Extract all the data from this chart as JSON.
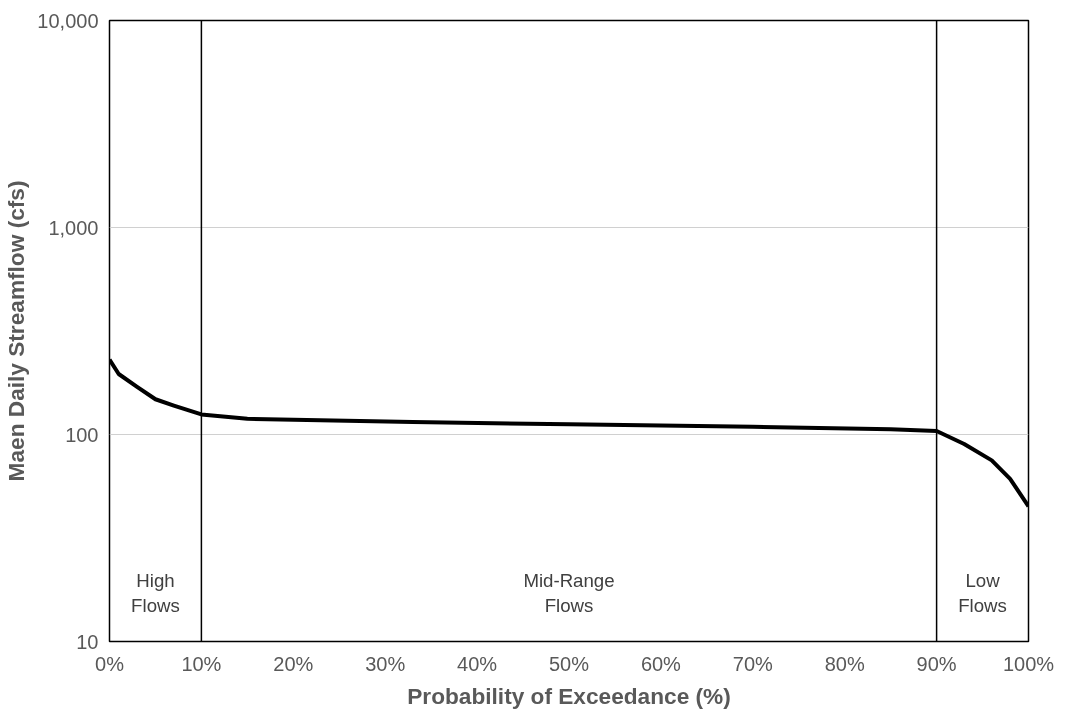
{
  "chart_data": {
    "type": "line",
    "xlabel": "Probability of Exceedance (%)",
    "ylabel": "Maen Daily Streamflow (cfs)",
    "log": "y",
    "grid": "y",
    "line_style": "solid",
    "marker": "none",
    "xlim": [
      0,
      100
    ],
    "ylim": [
      10,
      10000
    ],
    "xticks": [
      {
        "value": 0,
        "label": "0%"
      },
      {
        "value": 10,
        "label": "10%"
      },
      {
        "value": 20,
        "label": "20%"
      },
      {
        "value": 30,
        "label": "30%"
      },
      {
        "value": 40,
        "label": "40%"
      },
      {
        "value": 50,
        "label": "50%"
      },
      {
        "value": 60,
        "label": "60%"
      },
      {
        "value": 70,
        "label": "70%"
      },
      {
        "value": 80,
        "label": "80%"
      },
      {
        "value": 90,
        "label": "90%"
      },
      {
        "value": 100,
        "label": "100%"
      }
    ],
    "yticks": [
      10,
      100,
      {
        "value": 1000,
        "label": "1,000"
      },
      {
        "value": 10000,
        "label": "10,000"
      }
    ],
    "series": [
      {
        "color": "#000000",
        "x": [
          0,
          1,
          3,
          5,
          7,
          10,
          15,
          33,
          50,
          70,
          85,
          90,
          93,
          96,
          98,
          100
        ],
        "values": [
          230,
          196,
          170,
          148,
          138,
          125,
          119,
          115,
          112,
          109,
          106,
          104,
          90,
          75,
          61,
          45
        ]
      }
    ],
    "ref_lines": [
      {
        "axis": "x",
        "value": 10,
        "color": "#000000"
      },
      {
        "axis": "x",
        "value": 90,
        "color": "#000000"
      }
    ],
    "annotations": [
      "High\nFlows",
      "Mid-Range\nFlows",
      "Low\nFlows"
    ]
  }
}
